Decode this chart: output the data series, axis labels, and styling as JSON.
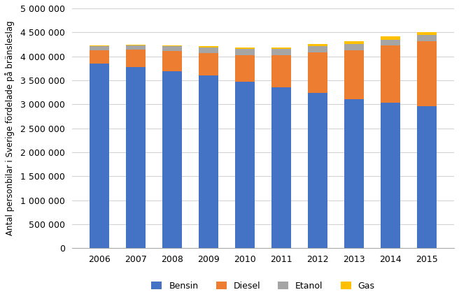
{
  "years": [
    2006,
    2007,
    2008,
    2009,
    2010,
    2011,
    2012,
    2013,
    2014,
    2015
  ],
  "bensin": [
    3850000,
    3780000,
    3690000,
    3600000,
    3470000,
    3350000,
    3230000,
    3110000,
    3040000,
    2960000
  ],
  "diesel": [
    280000,
    360000,
    420000,
    470000,
    560000,
    680000,
    850000,
    1020000,
    1180000,
    1360000
  ],
  "etanol": [
    80000,
    90000,
    100000,
    120000,
    130000,
    130000,
    130000,
    130000,
    130000,
    120000
  ],
  "gas": [
    10000,
    12000,
    15000,
    20000,
    25000,
    30000,
    40000,
    50000,
    60000,
    70000
  ],
  "bensin_color": "#4472C4",
  "diesel_color": "#ED7D31",
  "etanol_color": "#A5A5A5",
  "gas_color": "#FFC000",
  "ylabel": "Antal personbilar i Sverige fördelade på bränsleslag",
  "ylim": [
    0,
    5000000
  ],
  "yticks": [
    0,
    500000,
    1000000,
    1500000,
    2000000,
    2500000,
    3000000,
    3500000,
    4000000,
    4500000,
    5000000
  ],
  "legend_labels": [
    "Bensin",
    "Diesel",
    "Etanol",
    "Gas"
  ],
  "bar_width": 0.55,
  "background_color": "#FFFFFF",
  "grid_color": "#D3D3D3"
}
